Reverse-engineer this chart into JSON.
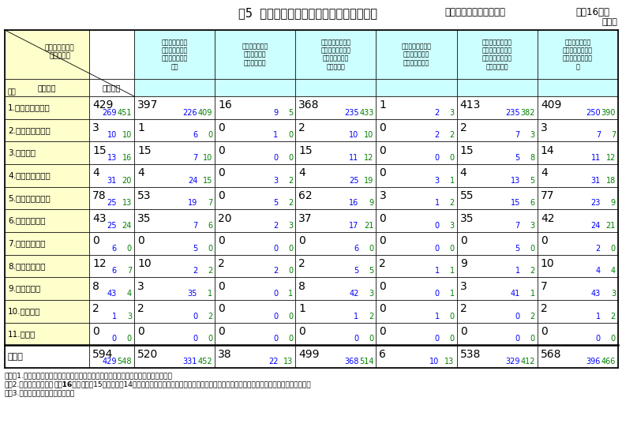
{
  "title": "表5  製品区分別再発防止措置等の実施状況",
  "subtitle": "（製品に起因する事故）",
  "year": "平成16年度",
  "unit": "［件］",
  "col_headers": [
    "製品の交換、部\n品の交換、安全\n点検等を行った\nもの",
    "製品の製造、販\n売又は輸入を\n中止したもの",
    "製品の改良、製造\n工程の改善、品質\n管理の強化等を\n行ったもの",
    "表示の改善、取扱\n説明書の見直し\n等を行ったもの",
    "政府、団体、事業\n者等の広報等によ\nり消費者に注意を\n喚起したもの",
    "被害者への措置\n損害賠償、製品交\n換等、個別的な措\n置"
  ],
  "row_labels": [
    "1.家庭用電気製品",
    "2.台所・食卓用品",
    "3.燃焼器具",
    "4.家具・住宅用品",
    "5.乗物・乗物用品",
    "6.身のまわり品",
    "7.保健衛生用品",
    "8.レジャー用品",
    "9.乳幼児用品",
    "10.繊維製品",
    "11.その他",
    "合　計"
  ],
  "cnt_main": [
    429,
    3,
    15,
    4,
    78,
    43,
    0,
    12,
    8,
    2,
    0,
    594
  ],
  "cnt_blue": [
    269,
    10,
    13,
    31,
    25,
    25,
    6,
    6,
    43,
    1,
    0,
    429
  ],
  "cnt_green": [
    451,
    10,
    16,
    20,
    13,
    24,
    0,
    7,
    4,
    3,
    0,
    548
  ],
  "c1_main": [
    397,
    1,
    15,
    4,
    53,
    35,
    0,
    10,
    3,
    2,
    0,
    520
  ],
  "c1_blue": [
    226,
    6,
    7,
    24,
    19,
    7,
    5,
    2,
    35,
    0,
    0,
    331
  ],
  "c1_green": [
    409,
    0,
    10,
    15,
    7,
    6,
    0,
    2,
    1,
    2,
    0,
    452
  ],
  "c2_main": [
    16,
    0,
    0,
    0,
    0,
    20,
    0,
    2,
    0,
    0,
    0,
    38
  ],
  "c2_blue": [
    9,
    1,
    0,
    3,
    5,
    2,
    0,
    2,
    0,
    0,
    0,
    22
  ],
  "c2_green": [
    5,
    0,
    0,
    2,
    2,
    3,
    0,
    0,
    1,
    0,
    0,
    13
  ],
  "c3_main": [
    368,
    2,
    15,
    4,
    62,
    37,
    0,
    2,
    8,
    1,
    0,
    499
  ],
  "c3_blue": [
    235,
    10,
    11,
    25,
    16,
    17,
    6,
    5,
    42,
    1,
    0,
    368
  ],
  "c3_green": [
    433,
    10,
    12,
    19,
    9,
    21,
    0,
    5,
    3,
    2,
    0,
    514
  ],
  "c4_main": [
    1,
    0,
    0,
    0,
    3,
    0,
    0,
    2,
    0,
    0,
    0,
    6
  ],
  "c4_blue": [
    2,
    2,
    0,
    3,
    1,
    0,
    0,
    1,
    0,
    1,
    0,
    10
  ],
  "c4_green": [
    3,
    2,
    0,
    1,
    2,
    3,
    0,
    1,
    1,
    0,
    0,
    13
  ],
  "c5_main": [
    413,
    2,
    15,
    4,
    55,
    35,
    0,
    9,
    3,
    2,
    0,
    538
  ],
  "c5_blue": [
    235,
    7,
    5,
    13,
    15,
    7,
    5,
    1,
    41,
    0,
    0,
    329
  ],
  "c5_green": [
    382,
    3,
    8,
    5,
    6,
    3,
    0,
    2,
    1,
    2,
    0,
    412
  ],
  "c6_main": [
    409,
    3,
    14,
    4,
    77,
    42,
    0,
    10,
    7,
    2,
    0,
    568
  ],
  "c6_blue": [
    250,
    7,
    11,
    31,
    23,
    24,
    2,
    4,
    43,
    1,
    0,
    396
  ],
  "c6_green": [
    390,
    7,
    12,
    18,
    9,
    21,
    0,
    4,
    3,
    2,
    0,
    466
  ],
  "note1": "（注）1.収集された事故に関して複数の措置が取られたものは、措置ごとに集計した。",
  "note2a": "　　2.各欄内の数値は（",
  "note2b": "平成16年度",
  "note2c": "、平成15年度、平成14年度）に収集した事故情報の調査結果に基づき事故原因別の被害状況を集計したものである。",
  "note3": "　　3.個別措置のみのものを除く。",
  "bg_yellow": "#FFFFCC",
  "bg_cyan": "#CCFFFF",
  "bg_white": "#FFFFFF",
  "color_black": "#000000",
  "color_blue": "#0000FF",
  "color_green": "#008000"
}
